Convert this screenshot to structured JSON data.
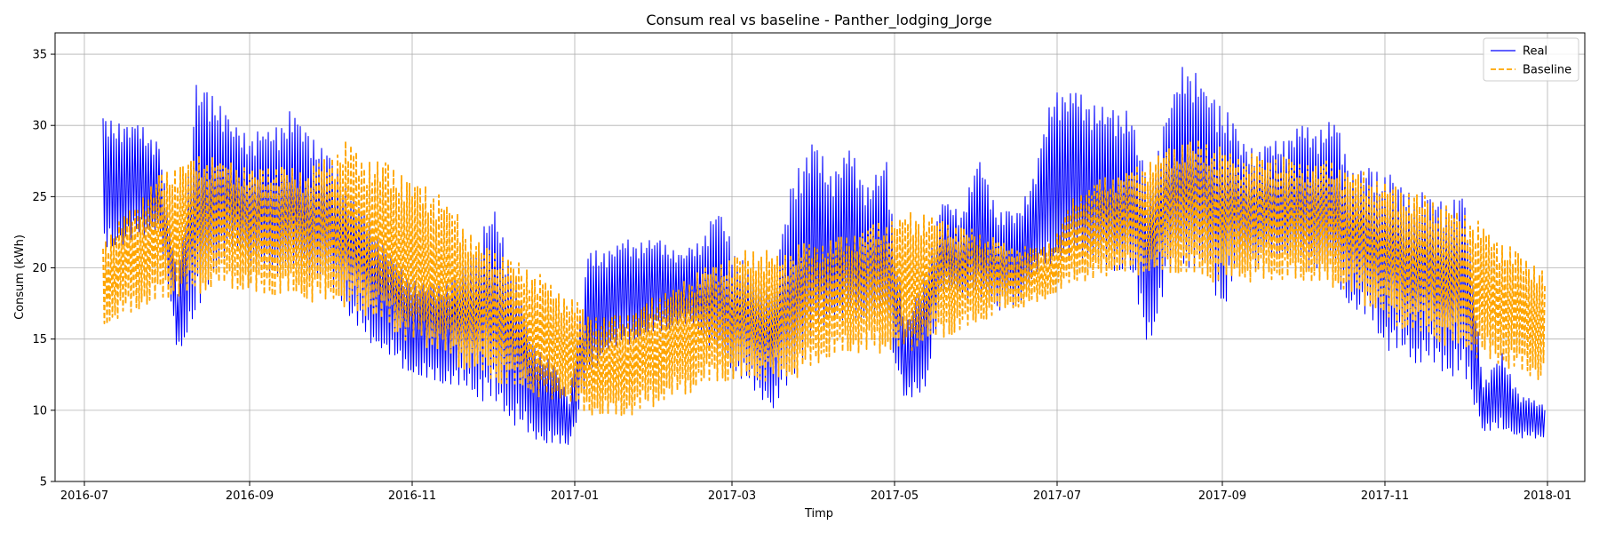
{
  "chart_data": {
    "type": "line",
    "title": "Consum real vs baseline - Panther_lodging_Jorge",
    "xlabel": "Timp",
    "ylabel": "Consum (kWh)",
    "x_range": [
      "2016-06-20",
      "2018-01-15"
    ],
    "ylim": [
      5,
      36.5
    ],
    "x_ticks": [
      "2016-07",
      "2016-09",
      "2016-11",
      "2017-01",
      "2017-03",
      "2017-05",
      "2017-07",
      "2017-09",
      "2017-11",
      "2018-01"
    ],
    "x_tick_dates": [
      "2016-07-01",
      "2016-09-01",
      "2016-11-01",
      "2017-01-01",
      "2017-03-01",
      "2017-05-01",
      "2017-07-01",
      "2017-09-01",
      "2017-11-01",
      "2018-01-01"
    ],
    "y_ticks": [
      5,
      10,
      15,
      20,
      25,
      30,
      35
    ],
    "grid": true,
    "legend_position": "top-right",
    "series": [
      {
        "name": "Real",
        "color": "#0000ff",
        "style": "solid",
        "x": [
          "2016-07-08",
          "2016-07-15",
          "2016-07-22",
          "2016-07-29",
          "2016-08-05",
          "2016-08-12",
          "2016-08-19",
          "2016-08-26",
          "2016-09-02",
          "2016-09-09",
          "2016-09-16",
          "2016-09-23",
          "2016-09-30",
          "2016-10-07",
          "2016-10-14",
          "2016-10-21",
          "2016-10-28",
          "2016-11-04",
          "2016-11-11",
          "2016-11-18",
          "2016-11-25",
          "2016-12-02",
          "2016-12-09",
          "2016-12-16",
          "2016-12-23",
          "2016-12-30",
          "2017-01-06",
          "2017-01-13",
          "2017-01-20",
          "2017-01-27",
          "2017-02-03",
          "2017-02-10",
          "2017-02-17",
          "2017-02-24",
          "2017-03-03",
          "2017-03-10",
          "2017-03-17",
          "2017-03-24",
          "2017-03-31",
          "2017-04-07",
          "2017-04-14",
          "2017-04-21",
          "2017-04-28",
          "2017-05-05",
          "2017-05-12",
          "2017-05-19",
          "2017-05-26",
          "2017-06-02",
          "2017-06-09",
          "2017-06-16",
          "2017-06-23",
          "2017-06-30",
          "2017-07-07",
          "2017-07-14",
          "2017-07-21",
          "2017-07-28",
          "2017-08-04",
          "2017-08-11",
          "2017-08-18",
          "2017-08-25",
          "2017-09-01",
          "2017-09-08",
          "2017-09-15",
          "2017-09-22",
          "2017-09-29",
          "2017-10-06",
          "2017-10-13",
          "2017-10-20",
          "2017-10-27",
          "2017-11-03",
          "2017-11-10",
          "2017-11-17",
          "2017-11-24",
          "2017-12-01",
          "2017-12-08",
          "2017-12-15",
          "2017-12-22",
          "2017-12-31"
        ],
        "low": [
          21,
          21.5,
          22,
          22.5,
          14,
          16,
          20,
          21,
          20,
          19,
          19.5,
          19,
          19,
          17,
          15,
          14,
          13,
          12,
          12,
          11.5,
          11,
          10,
          9,
          8,
          7.5,
          7.5,
          12,
          14,
          14.5,
          15,
          15.5,
          16,
          15.5,
          13,
          12.5,
          11,
          10,
          12,
          15,
          16,
          16,
          16,
          16,
          10.5,
          11,
          18,
          18,
          17.5,
          17,
          17,
          19.5,
          20,
          20.5,
          20,
          19.5,
          20,
          14,
          19,
          20,
          19.5,
          17,
          20,
          20,
          20.5,
          20,
          19.5,
          19,
          17,
          16,
          14,
          13.5,
          13,
          12.5,
          12,
          8.5,
          8.5,
          8,
          8
        ],
        "high": [
          30.5,
          30.5,
          30,
          29,
          19,
          33,
          32.5,
          30,
          29.5,
          30,
          31,
          30,
          28,
          26,
          24,
          22,
          20,
          19,
          19,
          19.5,
          22,
          24.5,
          20,
          15,
          13.5,
          11,
          21,
          21.5,
          22,
          22,
          22,
          21,
          22,
          24.5,
          21,
          19.5,
          19,
          27,
          29,
          27,
          28.5,
          26,
          27.5,
          16,
          19.5,
          25,
          24,
          28,
          24,
          24,
          27,
          33,
          32.5,
          32,
          31,
          31.5,
          26,
          31,
          35,
          33,
          32,
          29,
          28.5,
          29,
          30,
          30,
          30.5,
          27,
          27,
          27,
          25.5,
          25.5,
          25,
          25,
          12,
          14,
          11,
          10.5
        ]
      },
      {
        "name": "Baseline",
        "color": "#ffa500",
        "style": "dashed",
        "x": [
          "2016-07-08",
          "2016-07-15",
          "2016-07-22",
          "2016-07-29",
          "2016-08-05",
          "2016-08-12",
          "2016-08-19",
          "2016-08-26",
          "2016-09-02",
          "2016-09-09",
          "2016-09-16",
          "2016-09-23",
          "2016-09-30",
          "2016-10-07",
          "2016-10-14",
          "2016-10-21",
          "2016-10-28",
          "2016-11-04",
          "2016-11-11",
          "2016-11-18",
          "2016-11-25",
          "2016-12-02",
          "2016-12-09",
          "2016-12-16",
          "2016-12-23",
          "2016-12-30",
          "2017-01-06",
          "2017-01-13",
          "2017-01-20",
          "2017-01-27",
          "2017-02-03",
          "2017-02-10",
          "2017-02-17",
          "2017-02-24",
          "2017-03-03",
          "2017-03-10",
          "2017-03-17",
          "2017-03-24",
          "2017-03-31",
          "2017-04-07",
          "2017-04-14",
          "2017-04-21",
          "2017-04-28",
          "2017-05-05",
          "2017-05-12",
          "2017-05-19",
          "2017-05-26",
          "2017-06-02",
          "2017-06-09",
          "2017-06-16",
          "2017-06-23",
          "2017-06-30",
          "2017-07-07",
          "2017-07-14",
          "2017-07-21",
          "2017-07-28",
          "2017-08-04",
          "2017-08-11",
          "2017-08-18",
          "2017-08-25",
          "2017-09-01",
          "2017-09-08",
          "2017-09-15",
          "2017-09-22",
          "2017-09-29",
          "2017-10-06",
          "2017-10-13",
          "2017-10-20",
          "2017-10-27",
          "2017-11-03",
          "2017-11-10",
          "2017-11-17",
          "2017-11-24",
          "2017-12-01",
          "2017-12-08",
          "2017-12-15",
          "2017-12-22",
          "2017-12-31"
        ],
        "low": [
          15.5,
          16.5,
          17,
          17.5,
          18,
          18,
          18.5,
          18.5,
          18,
          18,
          18,
          17.5,
          17.5,
          17,
          16.5,
          16,
          15,
          14.5,
          14,
          13,
          12.5,
          12,
          11.5,
          11,
          10.5,
          10.5,
          9.5,
          9.5,
          9.5,
          10,
          10.5,
          11,
          11.5,
          12,
          12,
          12,
          12,
          12,
          13,
          13.5,
          14,
          14,
          14,
          14,
          14.5,
          15,
          15.5,
          16,
          17,
          17,
          17.5,
          18,
          19,
          19,
          19.5,
          19.5,
          19.5,
          19.5,
          19.5,
          19,
          19,
          19,
          19,
          19,
          19,
          19,
          18.5,
          18,
          17,
          16,
          15.5,
          15,
          14.5,
          14,
          13.5,
          13,
          12.5,
          12
        ],
        "high": [
          22,
          23.5,
          25,
          26.5,
          27.5,
          28,
          28,
          27.5,
          27,
          27.5,
          27,
          27,
          28,
          29,
          28,
          27.5,
          27,
          26,
          25.5,
          24,
          22,
          21.5,
          20.5,
          20,
          19,
          18,
          17,
          16.5,
          17,
          17.5,
          18.5,
          19,
          20,
          20.5,
          21,
          21.5,
          21,
          21.5,
          22,
          22,
          22.5,
          23,
          23.5,
          24,
          24,
          23.5,
          23,
          22.5,
          22,
          21.5,
          21.5,
          22,
          25,
          26,
          26.5,
          27,
          27.5,
          28.5,
          29,
          29,
          28.5,
          28,
          28,
          28,
          27.5,
          27.5,
          27.5,
          27,
          26.5,
          26,
          25.5,
          25,
          24.5,
          24,
          23,
          22,
          21,
          20
        ]
      }
    ]
  }
}
